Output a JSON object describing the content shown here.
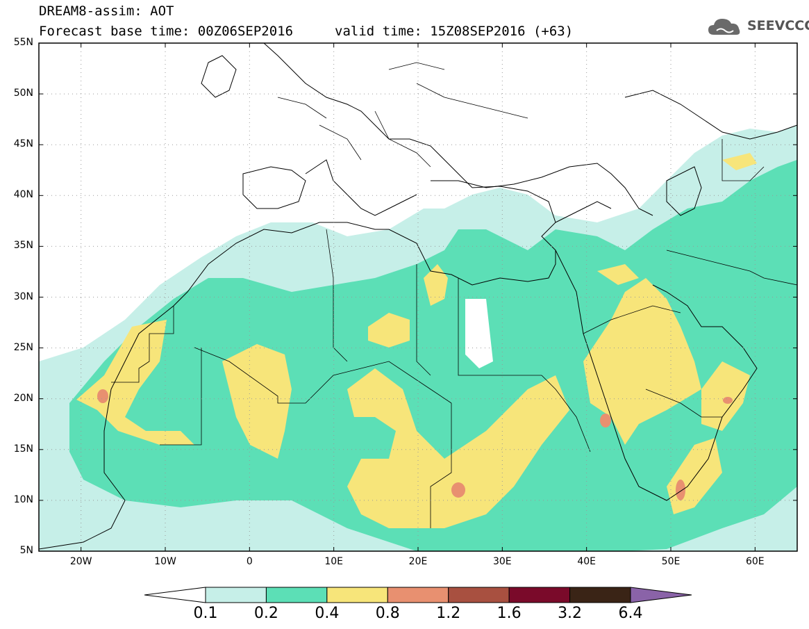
{
  "title": {
    "line1": "DREAM8-assim: AOT",
    "line2": "Forecast base time: 00Z06SEP2016",
    "valid": "valid time: 15Z08SEP2016 (+63)"
  },
  "logo": {
    "text": "SEEVCCC",
    "icon": "cloud-icon"
  },
  "map": {
    "lon_range": [
      -25,
      65
    ],
    "lat_range": [
      5,
      55
    ],
    "lat_ticks": [
      {
        "value": 55,
        "label": "55N"
      },
      {
        "value": 50,
        "label": "50N"
      },
      {
        "value": 45,
        "label": "45N"
      },
      {
        "value": 40,
        "label": "40N"
      },
      {
        "value": 35,
        "label": "35N"
      },
      {
        "value": 30,
        "label": "30N"
      },
      {
        "value": 25,
        "label": "25N"
      },
      {
        "value": 20,
        "label": "20N"
      },
      {
        "value": 15,
        "label": "15N"
      },
      {
        "value": 10,
        "label": "10N"
      },
      {
        "value": 5,
        "label": "5N"
      }
    ],
    "lon_ticks": [
      {
        "value": -20,
        "label": "20W"
      },
      {
        "value": -10,
        "label": "10W"
      },
      {
        "value": 0,
        "label": "0"
      },
      {
        "value": 10,
        "label": "10E"
      },
      {
        "value": 20,
        "label": "20E"
      },
      {
        "value": 30,
        "label": "30E"
      },
      {
        "value": 40,
        "label": "40E"
      },
      {
        "value": 50,
        "label": "50E"
      },
      {
        "value": 60,
        "label": "60E"
      }
    ],
    "grid": "dotted"
  },
  "legend": {
    "labels": [
      "0.1",
      "0.2",
      "0.4",
      "0.8",
      "1.2",
      "1.6",
      "3.2",
      "6.4"
    ],
    "colors": [
      "#ffffff",
      "#c6efe8",
      "#5cdfb6",
      "#f7e57a",
      "#e89070",
      "#a85040",
      "#7a0a2a",
      "#3a2416",
      "#8a63a8"
    ],
    "levels": {
      "low": "#c6efe8",
      "mid": "#5cdfb6",
      "high": "#f7e57a",
      "peak": "#e89070",
      "extreme": "#c06050"
    }
  }
}
